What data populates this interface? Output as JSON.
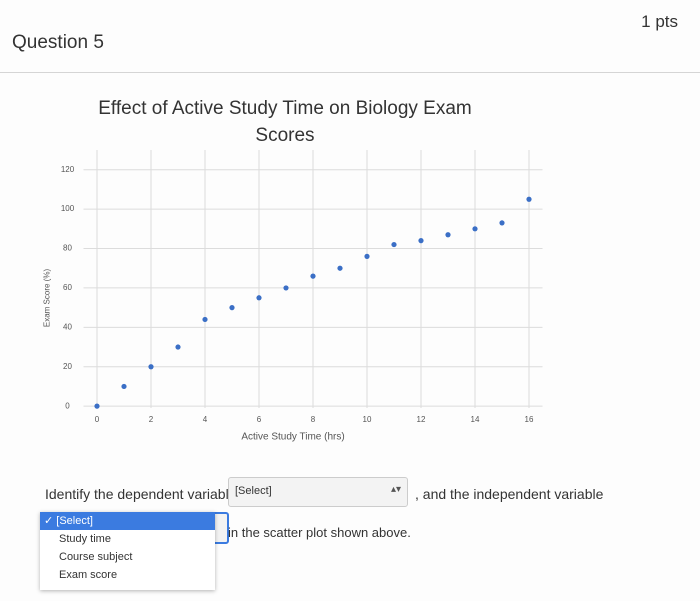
{
  "header": {
    "question": "Question 5",
    "points": "1 pts"
  },
  "chart_data": {
    "type": "scatter",
    "title": "Effect of Active Study Time on Biology Exam Scores",
    "x_label": "Active Study Time (hrs)",
    "y_label": "Exam Score (%)",
    "x": [
      0,
      1,
      2,
      3,
      4,
      5,
      6,
      7,
      8,
      9,
      10,
      11,
      12,
      13,
      14,
      15,
      16
    ],
    "values": [
      0,
      10,
      20,
      30,
      44,
      50,
      55,
      60,
      66,
      70,
      76,
      82,
      84,
      87,
      90,
      93,
      105
    ],
    "color": "#3b6fc6",
    "xlim": [
      -0.5,
      16.5
    ],
    "xticks": [
      0,
      2,
      4,
      6,
      8,
      10,
      12,
      14,
      16
    ],
    "ylim": [
      -5,
      130
    ],
    "yticks": [
      0,
      20,
      40,
      60,
      80,
      100,
      120
    ],
    "grid": true
  },
  "question": {
    "prompt_start": "Identify the dependent variable",
    "select_1": "[Select]",
    "middle": ", and the independent variable",
    "end": "in the scatter plot shown above.",
    "dropdown_options": [
      "[Select]",
      "Study time",
      "Course subject",
      "Exam score"
    ]
  }
}
